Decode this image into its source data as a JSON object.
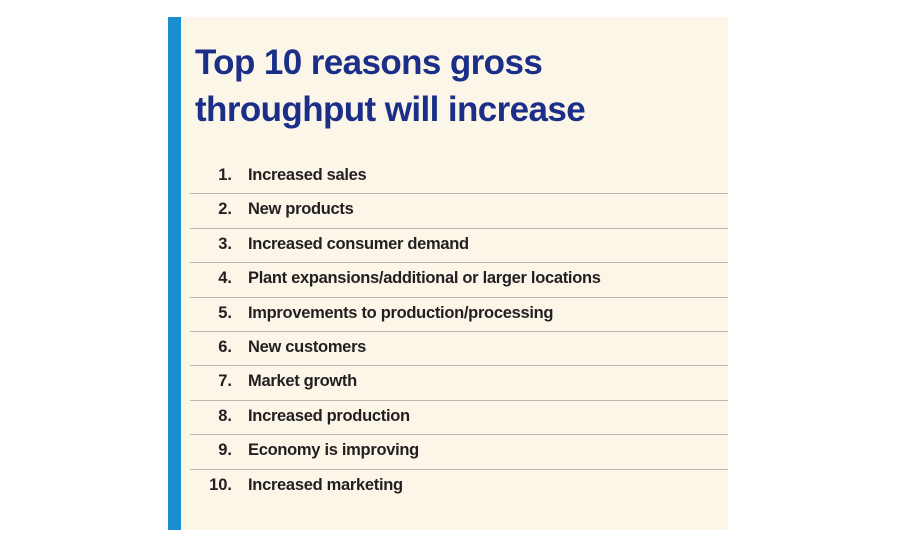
{
  "title_lines": [
    "Top 10 reasons gross",
    "throughput will increase"
  ],
  "items": [
    {
      "number": "1.",
      "text": "Increased sales"
    },
    {
      "number": "2.",
      "text": "New products"
    },
    {
      "number": "3.",
      "text": "Increased consumer demand"
    },
    {
      "number": "4.",
      "text": "Plant expansions/additional or larger locations"
    },
    {
      "number": "5.",
      "text": "Improvements to production/processing"
    },
    {
      "number": "6.",
      "text": "New customers"
    },
    {
      "number": "7.",
      "text": "Market growth"
    },
    {
      "number": "8.",
      "text": "Increased production"
    },
    {
      "number": "9.",
      "text": "Economy is improving"
    },
    {
      "number": "10.",
      "text": "Increased marketing"
    }
  ]
}
